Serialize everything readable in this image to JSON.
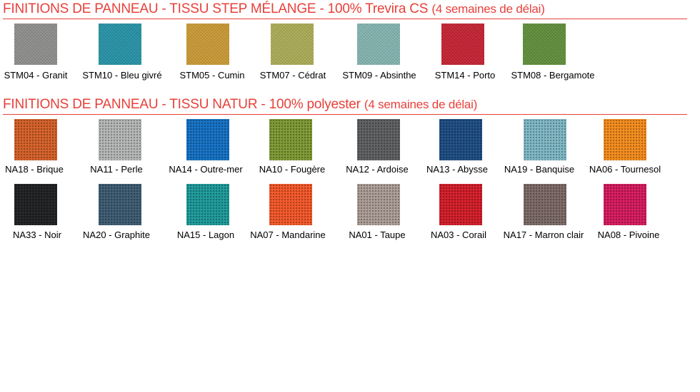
{
  "sections": [
    {
      "title": "FINITIONS DE PANNEAU - TISSU STEP MÉLANGE - 100% Trevira CS",
      "note": "(4 semaines de délai)",
      "rows": [
        [
          {
            "label": "STM04 - Granit",
            "color": "#8a8a88"
          },
          {
            "label": "STM10 - Bleu givré",
            "color": "#1f8ea3"
          },
          {
            "label": "STM05 - Cumin",
            "color": "#c7952e"
          },
          {
            "label": "STM07 - Cédrat",
            "color": "#a8a850"
          },
          {
            "label": "STM09 - Absinthe",
            "color": "#7fb0ac"
          },
          {
            "label": "STM14 - Porto",
            "color": "#c11b2b"
          },
          {
            "label": "STM08 - Bergamote",
            "color": "#5a8a33"
          }
        ]
      ]
    },
    {
      "title": "FINITIONS DE PANNEAU - TISSU NATUR - 100% polyester",
      "note": "(4 semaines de délai)",
      "rows": [
        [
          {
            "label": "NA18 - Brique",
            "color": "#d4612a"
          },
          {
            "label": "NA11 - Perle",
            "color": "#b4b6b6"
          },
          {
            "label": "NA14 - Outre-mer",
            "color": "#1672c4"
          },
          {
            "label": "NA10 - Fougère",
            "color": "#7e9a35"
          },
          {
            "label": "NA12 - Ardoise",
            "color": "#5e6062"
          },
          {
            "label": "NA13 - Abysse",
            "color": "#1f4f84"
          },
          {
            "label": "NA19 - Banquise",
            "color": "#7fb7c4"
          },
          {
            "label": "NA06 - Tournesol",
            "color": "#f28c1e"
          }
        ],
        [
          {
            "label": "NA33 - Noir",
            "color": "#222325"
          },
          {
            "label": "NA20 - Graphite",
            "color": "#3e5d73"
          },
          {
            "label": "NA15 - Lagon",
            "color": "#1f9a9a"
          },
          {
            "label": "NA07 - Mandarine",
            "color": "#f2582a"
          },
          {
            "label": "NA01 - Taupe",
            "color": "#ab9c96"
          },
          {
            "label": "NA03 - Corail",
            "color": "#d31f2b"
          },
          {
            "label": "NA17 - Marron clair",
            "color": "#7c6a66"
          },
          {
            "label": "NA08 - Pivoine",
            "color": "#d51c5e"
          }
        ]
      ]
    }
  ]
}
